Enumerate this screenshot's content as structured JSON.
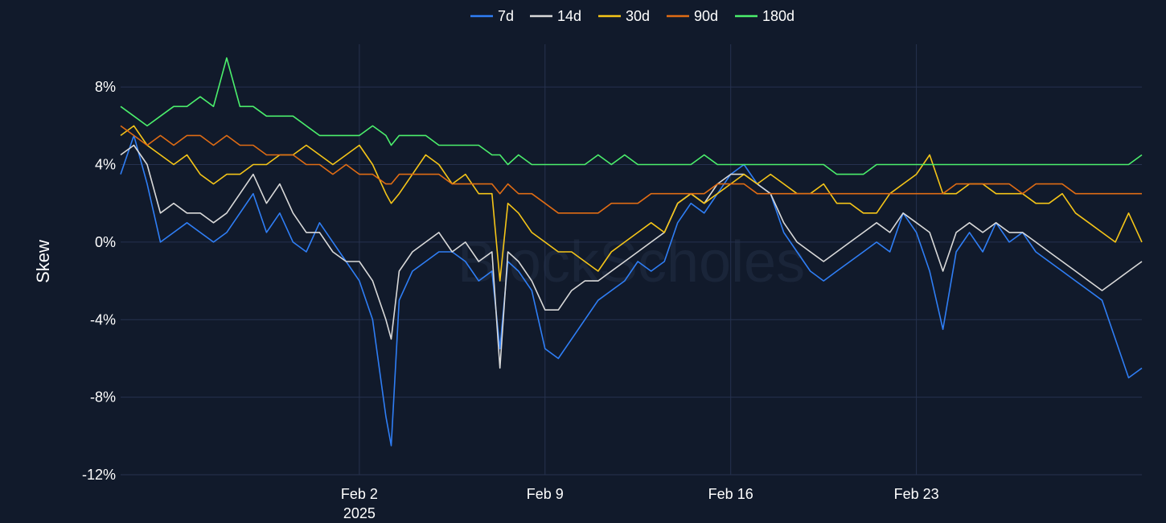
{
  "chart_data": {
    "type": "line",
    "title": "",
    "xlabel": "",
    "ylabel": "Skew",
    "watermark": "BlockScholes",
    "ylim": [
      -12,
      10
    ],
    "y_ticks": [
      {
        "value": 8,
        "label": "8%"
      },
      {
        "value": 4,
        "label": "4%"
      },
      {
        "value": 0,
        "label": "0%"
      },
      {
        "value": -4,
        "label": "-4%"
      },
      {
        "value": -8,
        "label": "-8%"
      },
      {
        "value": -12,
        "label": "-12%"
      }
    ],
    "xlim": [
      0,
      38.5
    ],
    "x_ticks": [
      {
        "value": 9,
        "label": "Feb 2",
        "sublabel": "2025"
      },
      {
        "value": 16,
        "label": "Feb 9",
        "sublabel": ""
      },
      {
        "value": 23,
        "label": "Feb 16",
        "sublabel": ""
      },
      {
        "value": 30,
        "label": "Feb 23",
        "sublabel": ""
      }
    ],
    "x_unit": "days since Jan 24 2025",
    "legend_position": "top-center",
    "series": [
      {
        "name": "7d",
        "color": "#2f7ef5",
        "x": [
          0,
          0.5,
          1,
          1.5,
          2,
          2.5,
          3,
          3.5,
          4,
          4.5,
          5,
          5.5,
          6,
          6.5,
          7,
          7.5,
          8,
          8.5,
          9,
          9.5,
          10,
          10.2,
          10.5,
          11,
          11.5,
          12,
          12.5,
          13,
          13.5,
          14,
          14.3,
          14.6,
          15,
          15.5,
          16,
          16.5,
          17,
          17.5,
          18,
          18.5,
          19,
          19.5,
          20,
          20.5,
          21,
          21.5,
          22,
          22.5,
          23,
          23.5,
          24,
          24.5,
          25,
          25.5,
          26,
          26.5,
          27,
          27.5,
          28,
          28.5,
          29,
          29.5,
          30,
          30.5,
          31,
          31.5,
          32,
          32.5,
          33,
          33.5,
          34,
          34.5,
          35,
          35.5,
          36,
          36.5,
          37,
          37.5,
          38,
          38.5
        ],
        "values": [
          3.5,
          5.5,
          3.0,
          0.0,
          0.5,
          1.0,
          0.5,
          0.0,
          0.5,
          1.5,
          2.5,
          0.5,
          1.5,
          0.0,
          -0.5,
          1.0,
          0.0,
          -1.0,
          -2.0,
          -4.0,
          -9.0,
          -10.5,
          -3.0,
          -1.5,
          -1.0,
          -0.5,
          -0.5,
          -1.0,
          -2.0,
          -1.5,
          -5.5,
          -1.0,
          -1.5,
          -2.5,
          -5.5,
          -6.0,
          -5.0,
          -4.0,
          -3.0,
          -2.5,
          -2.0,
          -1.0,
          -1.5,
          -1.0,
          1.0,
          2.0,
          1.5,
          2.5,
          3.5,
          4.0,
          3.0,
          2.5,
          0.5,
          -0.5,
          -1.5,
          -2.0,
          -1.5,
          -1.0,
          -0.5,
          0.0,
          -0.5,
          1.5,
          0.5,
          -1.5,
          -4.5,
          -0.5,
          0.5,
          -0.5,
          1.0,
          0.0,
          0.5,
          -0.5,
          -1.0,
          -1.5,
          -2.0,
          -2.5,
          -3.0,
          -5.0,
          -7.0,
          -6.5
        ]
      },
      {
        "name": "14d",
        "color": "#d9d9d9",
        "x": [
          0,
          0.5,
          1,
          1.5,
          2,
          2.5,
          3,
          3.5,
          4,
          4.5,
          5,
          5.5,
          6,
          6.5,
          7,
          7.5,
          8,
          8.5,
          9,
          9.5,
          10,
          10.2,
          10.5,
          11,
          11.5,
          12,
          12.5,
          13,
          13.5,
          14,
          14.3,
          14.6,
          15,
          15.5,
          16,
          16.5,
          17,
          17.5,
          18,
          18.5,
          19,
          19.5,
          20,
          20.5,
          21,
          21.5,
          22,
          22.5,
          23,
          23.5,
          24,
          24.5,
          25,
          25.5,
          26,
          26.5,
          27,
          27.5,
          28,
          28.5,
          29,
          29.5,
          30,
          30.5,
          31,
          31.5,
          32,
          32.5,
          33,
          33.5,
          34,
          34.5,
          35,
          35.5,
          36,
          36.5,
          37,
          37.5,
          38,
          38.5
        ],
        "values": [
          4.5,
          5.0,
          4.0,
          1.5,
          2.0,
          1.5,
          1.5,
          1.0,
          1.5,
          2.5,
          3.5,
          2.0,
          3.0,
          1.5,
          0.5,
          0.5,
          -0.5,
          -1.0,
          -1.0,
          -2.0,
          -4.0,
          -5.0,
          -1.5,
          -0.5,
          0.0,
          0.5,
          -0.5,
          0.0,
          -1.0,
          -0.5,
          -6.5,
          -0.5,
          -1.0,
          -2.0,
          -3.5,
          -3.5,
          -2.5,
          -2.0,
          -2.0,
          -1.5,
          -1.0,
          -0.5,
          0.0,
          0.5,
          2.0,
          2.5,
          2.0,
          3.0,
          3.5,
          3.5,
          3.0,
          2.5,
          1.0,
          0.0,
          -0.5,
          -1.0,
          -0.5,
          0.0,
          0.5,
          1.0,
          0.5,
          1.5,
          1.0,
          0.5,
          -1.5,
          0.5,
          1.0,
          0.5,
          1.0,
          0.5,
          0.5,
          0.0,
          -0.5,
          -1.0,
          -1.5,
          -2.0,
          -2.5,
          -2.0,
          -1.5,
          -1.0
        ]
      },
      {
        "name": "30d",
        "color": "#f5c518",
        "x": [
          0,
          0.5,
          1,
          1.5,
          2,
          2.5,
          3,
          3.5,
          4,
          4.5,
          5,
          5.5,
          6,
          6.5,
          7,
          7.5,
          8,
          8.5,
          9,
          9.5,
          10,
          10.2,
          10.5,
          11,
          11.5,
          12,
          12.5,
          13,
          13.5,
          14,
          14.3,
          14.6,
          15,
          15.5,
          16,
          16.5,
          17,
          17.5,
          18,
          18.5,
          19,
          19.5,
          20,
          20.5,
          21,
          21.5,
          22,
          22.5,
          23,
          23.5,
          24,
          24.5,
          25,
          25.5,
          26,
          26.5,
          27,
          27.5,
          28,
          28.5,
          29,
          29.5,
          30,
          30.5,
          31,
          31.5,
          32,
          32.5,
          33,
          33.5,
          34,
          34.5,
          35,
          35.5,
          36,
          36.5,
          37,
          37.5,
          38,
          38.5
        ],
        "values": [
          5.5,
          6.0,
          5.0,
          4.5,
          4.0,
          4.5,
          3.5,
          3.0,
          3.5,
          3.5,
          4.0,
          4.0,
          4.5,
          4.5,
          5.0,
          4.5,
          4.0,
          4.5,
          5.0,
          4.0,
          2.5,
          2.0,
          2.5,
          3.5,
          4.5,
          4.0,
          3.0,
          3.5,
          2.5,
          2.5,
          -2.0,
          2.0,
          1.5,
          0.5,
          0.0,
          -0.5,
          -0.5,
          -1.0,
          -1.5,
          -0.5,
          0.0,
          0.5,
          1.0,
          0.5,
          2.0,
          2.5,
          2.0,
          2.5,
          3.0,
          3.5,
          3.0,
          3.5,
          3.0,
          2.5,
          2.5,
          3.0,
          2.0,
          2.0,
          1.5,
          1.5,
          2.5,
          3.0,
          3.5,
          4.5,
          2.5,
          2.5,
          3.0,
          3.0,
          2.5,
          2.5,
          2.5,
          2.0,
          2.0,
          2.5,
          1.5,
          1.0,
          0.5,
          0.0,
          1.5,
          0.0
        ]
      },
      {
        "name": "90d",
        "color": "#e06c14",
        "x": [
          0,
          0.5,
          1,
          1.5,
          2,
          2.5,
          3,
          3.5,
          4,
          4.5,
          5,
          5.5,
          6,
          6.5,
          7,
          7.5,
          8,
          8.5,
          9,
          9.5,
          10,
          10.2,
          10.5,
          11,
          11.5,
          12,
          12.5,
          13,
          13.5,
          14,
          14.3,
          14.6,
          15,
          15.5,
          16,
          16.5,
          17,
          17.5,
          18,
          18.5,
          19,
          19.5,
          20,
          20.5,
          21,
          21.5,
          22,
          22.5,
          23,
          23.5,
          24,
          24.5,
          25,
          25.5,
          26,
          26.5,
          27,
          27.5,
          28,
          28.5,
          29,
          29.5,
          30,
          30.5,
          31,
          31.5,
          32,
          32.5,
          33,
          33.5,
          34,
          34.5,
          35,
          35.5,
          36,
          36.5,
          37,
          37.5,
          38,
          38.5
        ],
        "values": [
          6.0,
          5.5,
          5.0,
          5.5,
          5.0,
          5.5,
          5.5,
          5.0,
          5.5,
          5.0,
          5.0,
          4.5,
          4.5,
          4.5,
          4.0,
          4.0,
          3.5,
          4.0,
          3.5,
          3.5,
          3.0,
          3.0,
          3.5,
          3.5,
          3.5,
          3.5,
          3.0,
          3.0,
          3.0,
          3.0,
          2.5,
          3.0,
          2.5,
          2.5,
          2.0,
          1.5,
          1.5,
          1.5,
          1.5,
          2.0,
          2.0,
          2.0,
          2.5,
          2.5,
          2.5,
          2.5,
          2.5,
          3.0,
          3.0,
          3.0,
          2.5,
          2.5,
          2.5,
          2.5,
          2.5,
          2.5,
          2.5,
          2.5,
          2.5,
          2.5,
          2.5,
          2.5,
          2.5,
          2.5,
          2.5,
          3.0,
          3.0,
          3.0,
          3.0,
          3.0,
          2.5,
          3.0,
          3.0,
          3.0,
          2.5,
          2.5,
          2.5,
          2.5,
          2.5,
          2.5
        ]
      },
      {
        "name": "180d",
        "color": "#4bef6c",
        "x": [
          0,
          0.5,
          1,
          1.5,
          2,
          2.5,
          3,
          3.5,
          4,
          4.5,
          5,
          5.5,
          6,
          6.5,
          7,
          7.5,
          8,
          8.5,
          9,
          9.5,
          10,
          10.2,
          10.5,
          11,
          11.5,
          12,
          12.5,
          13,
          13.5,
          14,
          14.3,
          14.6,
          15,
          15.5,
          16,
          16.5,
          17,
          17.5,
          18,
          18.5,
          19,
          19.5,
          20,
          20.5,
          21,
          21.5,
          22,
          22.5,
          23,
          23.5,
          24,
          24.5,
          25,
          25.5,
          26,
          26.5,
          27,
          27.5,
          28,
          28.5,
          29,
          29.5,
          30,
          30.5,
          31,
          31.5,
          32,
          32.5,
          33,
          33.5,
          34,
          34.5,
          35,
          35.5,
          36,
          36.5,
          37,
          37.5,
          38,
          38.5
        ],
        "values": [
          7.0,
          6.5,
          6.0,
          6.5,
          7.0,
          7.0,
          7.5,
          7.0,
          9.5,
          7.0,
          7.0,
          6.5,
          6.5,
          6.5,
          6.0,
          5.5,
          5.5,
          5.5,
          5.5,
          6.0,
          5.5,
          5.0,
          5.5,
          5.5,
          5.5,
          5.0,
          5.0,
          5.0,
          5.0,
          4.5,
          4.5,
          4.0,
          4.5,
          4.0,
          4.0,
          4.0,
          4.0,
          4.0,
          4.5,
          4.0,
          4.5,
          4.0,
          4.0,
          4.0,
          4.0,
          4.0,
          4.5,
          4.0,
          4.0,
          4.0,
          4.0,
          4.0,
          4.0,
          4.0,
          4.0,
          4.0,
          3.5,
          3.5,
          3.5,
          4.0,
          4.0,
          4.0,
          4.0,
          4.0,
          4.0,
          4.0,
          4.0,
          4.0,
          4.0,
          4.0,
          4.0,
          4.0,
          4.0,
          4.0,
          4.0,
          4.0,
          4.0,
          4.0,
          4.0,
          4.5
        ]
      }
    ]
  }
}
